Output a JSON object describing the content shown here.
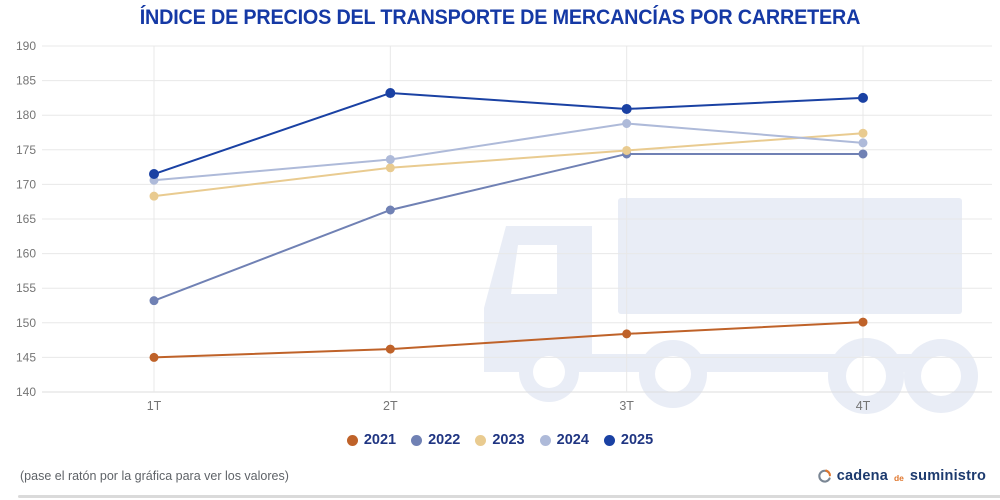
{
  "title": "ÍNDICE DE PRECIOS DEL TRANSPORTE DE MERCANCÍAS POR CARRETERA",
  "chart_data": {
    "type": "line",
    "categories": [
      "1T",
      "2T",
      "3T",
      "4T"
    ],
    "series": [
      {
        "name": "2021",
        "color": "#BF6229",
        "values": [
          145.0,
          146.2,
          148.4,
          150.1
        ]
      },
      {
        "name": "2022",
        "color": "#7081B4",
        "values": [
          153.2,
          166.3,
          174.4,
          174.4
        ]
      },
      {
        "name": "2023",
        "color": "#E9CB90",
        "values": [
          168.3,
          172.4,
          174.9,
          177.4
        ]
      },
      {
        "name": "2024",
        "color": "#AEBAD9",
        "values": [
          170.6,
          173.6,
          178.8,
          176.0
        ]
      },
      {
        "name": "2025",
        "color": "#1A41A3",
        "values": [
          171.5,
          183.2,
          180.9,
          182.5
        ]
      }
    ],
    "title": "ÍNDICE DE PRECIOS DEL TRANSPORTE DE MERCANCÍAS POR CARRETERA",
    "xlabel": "",
    "ylabel": "",
    "ylim": [
      140,
      190
    ],
    "ytick_step": 5,
    "grid": true,
    "legend_position": "bottom"
  },
  "footer": {
    "hint": "(pase el ratón por la gráfica para ver los valores)"
  },
  "logo": {
    "part1": "cadena",
    "part2": "de",
    "part3": "suministro"
  },
  "colors": {
    "title": "#1539A5",
    "legend_text": "#1F3582",
    "axis_text": "#757575",
    "grid": "#E8E8E8",
    "watermark": "#E9EDF6"
  }
}
